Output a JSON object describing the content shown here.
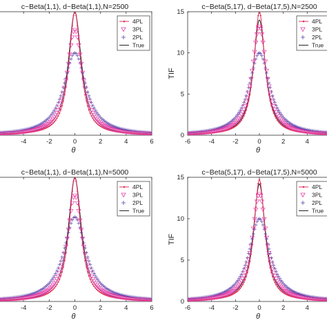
{
  "chart_data": [
    {
      "type": "line",
      "title": "c~Beta(1,1), d~Beta(1,1),N=2500",
      "xlabel": "θ",
      "ylabel": "",
      "xlim": [
        -6,
        6
      ],
      "xticks": [
        -4,
        -2,
        0,
        2,
        4,
        6
      ],
      "ylim": [
        0,
        15
      ],
      "yticks": [],
      "legend": {
        "position": "top-right",
        "entries": [
          "4PL",
          "3PL",
          "2PL",
          "True"
        ]
      },
      "peaks": {
        "4PL": 15.0,
        "3PL": 12.8,
        "2PL": 10.0,
        "True": 15.0
      }
    },
    {
      "type": "line",
      "title": "c~Beta(5,17), d~Beta(17,5),N=2500",
      "xlabel": "θ",
      "ylabel": "TIF",
      "xlim": [
        -6,
        6
      ],
      "xticks": [
        -6,
        -4,
        -2,
        0,
        2,
        4
      ],
      "ylim": [
        0,
        15
      ],
      "yticks": [
        0,
        5,
        10,
        15
      ],
      "legend": {
        "position": "top-right",
        "entries": [
          "4PL",
          "3PL",
          "2PL",
          "True"
        ]
      },
      "peaks": {
        "4PL": 15.0,
        "3PL": 13.2,
        "2PL": 10.0,
        "True": 14.0
      }
    },
    {
      "type": "line",
      "title": "c~Beta(1,1), d~Beta(1,1),N=5000",
      "xlabel": "θ",
      "ylabel": "",
      "xlim": [
        -6,
        6
      ],
      "xticks": [
        -4,
        -2,
        0,
        2,
        4,
        6
      ],
      "ylim": [
        0,
        15
      ],
      "yticks": [],
      "legend": {
        "position": "top-right",
        "entries": [
          "4PL",
          "3PL",
          "2PL",
          "True"
        ]
      },
      "peaks": {
        "4PL": 15.0,
        "3PL": 12.8,
        "2PL": 10.2,
        "True": 15.0
      }
    },
    {
      "type": "line",
      "title": "c~Beta(5,17), d~Beta(17,5),N=5000",
      "xlabel": "θ",
      "ylabel": "TIF",
      "xlim": [
        -6,
        6
      ],
      "xticks": [
        -6,
        -4,
        -2,
        0,
        2,
        4
      ],
      "ylim": [
        0,
        15
      ],
      "yticks": [
        0,
        5,
        10,
        15
      ],
      "legend": {
        "position": "top-right",
        "entries": [
          "4PL",
          "3PL",
          "2PL",
          "True"
        ]
      },
      "peaks": {
        "4PL": 14.7,
        "3PL": 13.0,
        "2PL": 10.0,
        "True": 14.2
      }
    }
  ],
  "colors": {
    "4PL": "#e0305a",
    "3PL": "#e83fa8",
    "2PL": "#5a3fa8",
    "True": "#222222"
  }
}
